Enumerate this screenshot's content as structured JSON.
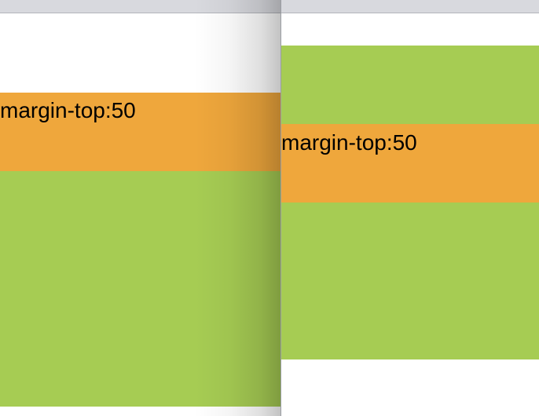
{
  "colors": {
    "orange": "#efa73c",
    "green": "#a6cc53",
    "topbar": "#d8d9de"
  },
  "left_pane": {
    "orange_label": "margin-top:50"
  },
  "right_pane": {
    "orange_label": "margin-top:50"
  }
}
